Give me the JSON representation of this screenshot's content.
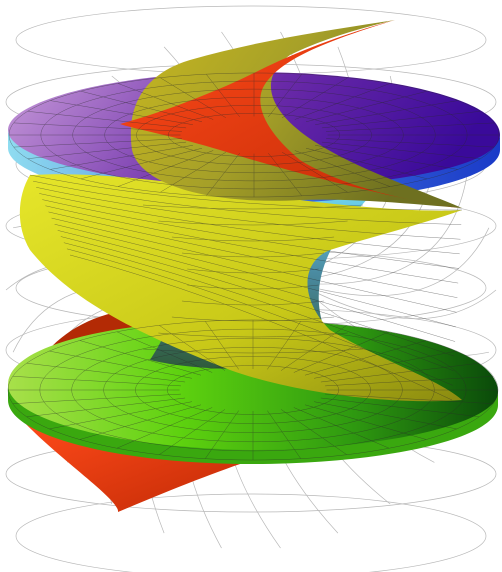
{
  "figure": {
    "subject": "helicoid-catenoid-surface",
    "colors": {
      "background": "#ffffff",
      "wireframe": "#b8b8b8",
      "mesh_line": "#2a2a2a",
      "purple_light": "#c79ad9",
      "purple_dark": "#3a0a9a",
      "blue": "#2a6ae0",
      "cyan": "#6fd3ee",
      "teal": "#3f7f8f",
      "yellow": "#d8d81a",
      "yellow_dark": "#8a8a10",
      "olive": "#a6a028",
      "red": "#ee3a12",
      "red_dark": "#b32a05",
      "green_light": "#6bd80f",
      "green": "#2f9a10",
      "green_dark": "#0a4a0a"
    }
  }
}
